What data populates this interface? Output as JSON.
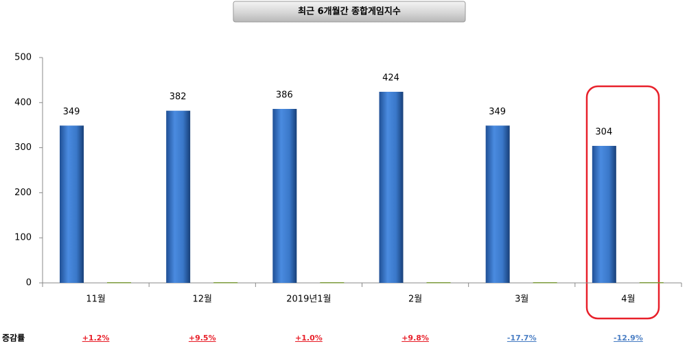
{
  "chart_data": {
    "type": "bar",
    "title": "최근 6개월간 종합게임지수",
    "categories": [
      "11월",
      "12월",
      "2019년1월",
      "2월",
      "3월",
      "4월"
    ],
    "series": [
      {
        "color": "#3a78c9",
        "values": [
          349,
          382,
          386,
          424,
          349,
          304
        ]
      },
      {
        "color": "#7a9a3a",
        "values": [
          0,
          0,
          0,
          0,
          0,
          0
        ]
      }
    ],
    "ylim": [
      0,
      500
    ],
    "yticks": [
      0,
      100,
      200,
      300,
      400,
      500
    ],
    "grid": false,
    "rate_label": "증감률",
    "rates": [
      "+1.2%",
      "+9.5%",
      "+1.0%",
      "+9.8%",
      "-17.7%",
      "-12.9%"
    ],
    "rate_colors": [
      "#e8202a",
      "#e8202a",
      "#e8202a",
      "#e8202a",
      "#4a7ec4",
      "#4a7ec4"
    ]
  }
}
